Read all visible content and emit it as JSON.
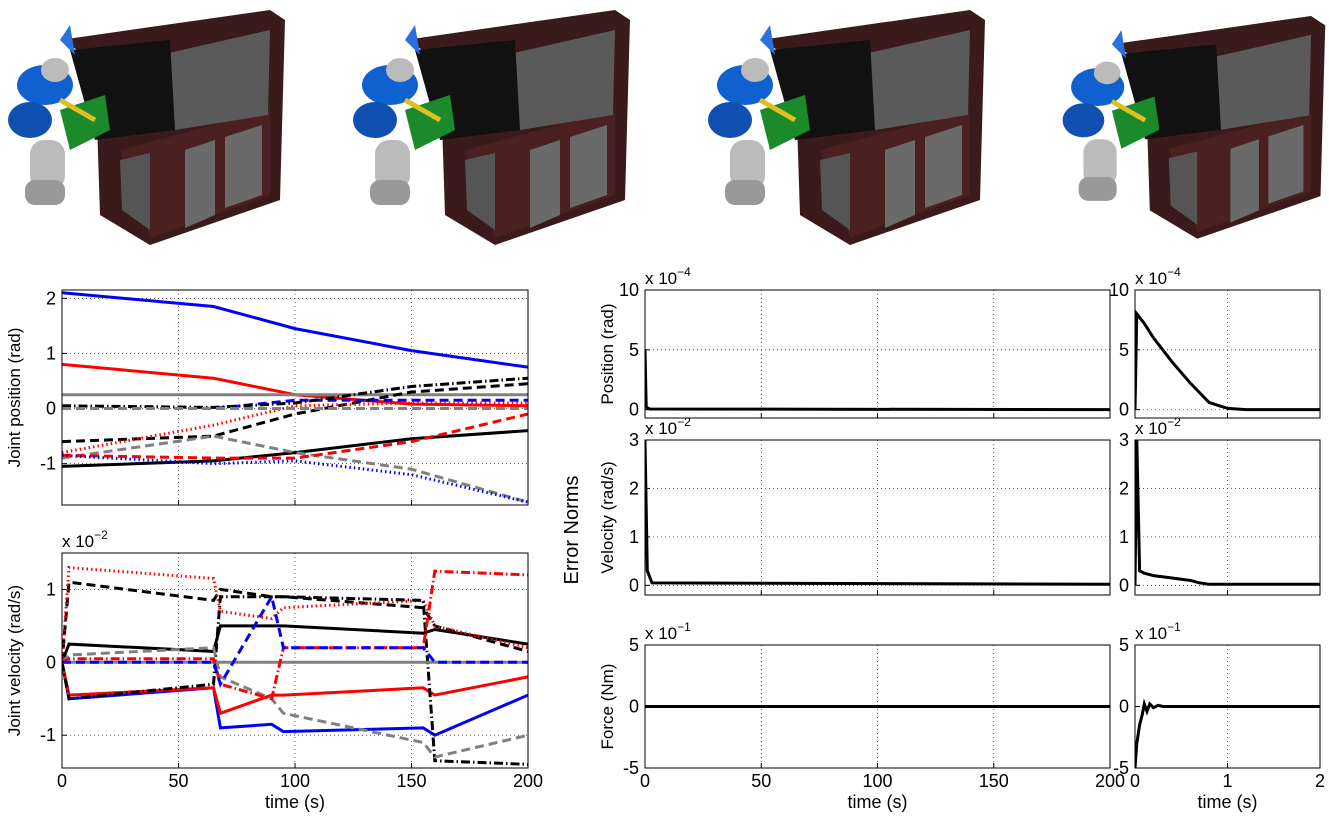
{
  "group_label": "Error Norms",
  "chart_data": [
    {
      "type": "line",
      "ylabel": "Joint position (rad)",
      "xlim": [
        0,
        200
      ],
      "xticks": [
        0,
        50,
        100,
        150,
        200
      ],
      "show_xtick_labels": false,
      "ylim": [
        -1.75,
        2.15
      ],
      "yticks": [
        -1,
        0,
        1,
        2
      ],
      "grid": true,
      "x": [
        0,
        65,
        100,
        150,
        200
      ],
      "series": [
        {
          "color": "#0000ff",
          "style": "solid",
          "values": [
            2.1,
            1.85,
            1.45,
            1.05,
            0.75
          ]
        },
        {
          "color": "#ff0000",
          "style": "solid",
          "values": [
            0.8,
            0.55,
            0.25,
            0.08,
            0.05
          ]
        },
        {
          "color": "#808080",
          "style": "solid",
          "values": [
            0.25,
            0.25,
            0.25,
            0.25,
            0.25
          ]
        },
        {
          "color": "#000000",
          "style": "solid",
          "values": [
            -1.05,
            -0.95,
            -0.8,
            -0.55,
            -0.4
          ]
        },
        {
          "color": "#000000",
          "style": "dashed",
          "values": [
            -0.6,
            -0.5,
            -0.1,
            0.3,
            0.45
          ]
        },
        {
          "color": "#808080",
          "style": "dashed",
          "values": [
            -0.9,
            -0.5,
            -0.8,
            -1.1,
            -1.7
          ]
        },
        {
          "color": "#0000ff",
          "style": "dashed",
          "values": [
            0,
            0,
            0.15,
            0.15,
            0.15
          ]
        },
        {
          "color": "#ff0000",
          "style": "dashed",
          "values": [
            -0.85,
            -0.9,
            -0.9,
            -0.6,
            -0.1
          ]
        },
        {
          "color": "#000000",
          "style": "dashdot",
          "values": [
            0.05,
            0.02,
            0.1,
            0.4,
            0.55
          ]
        },
        {
          "color": "#ff0000",
          "style": "dotted",
          "values": [
            -0.8,
            -0.3,
            0.05,
            0.1,
            0.1
          ]
        },
        {
          "color": "#0000ff",
          "style": "dotted",
          "values": [
            -0.85,
            -1.0,
            -0.95,
            -1.2,
            -1.7
          ]
        },
        {
          "color": "#808080",
          "style": "dashed",
          "values": [
            0,
            0,
            0,
            0,
            0
          ]
        }
      ]
    },
    {
      "type": "line",
      "ylabel": "Joint velocity (rad/s)",
      "xlabel": "time (s)",
      "y_scale": {
        "base": "x 10",
        "exponent": "−2"
      },
      "xlim": [
        0,
        200
      ],
      "xticks": [
        0,
        50,
        100,
        150,
        200
      ],
      "show_xtick_labels": true,
      "ylim": [
        -1.45,
        1.5
      ],
      "yticks": [
        -1,
        0,
        1
      ],
      "grid": true,
      "x": [
        0,
        3,
        65,
        68,
        90,
        95,
        155,
        160,
        200
      ],
      "series": [
        {
          "color": "#0000ff",
          "style": "solid",
          "values": [
            0,
            -0.5,
            -0.35,
            -0.9,
            -0.85,
            -0.95,
            -0.9,
            -1.0,
            -0.45
          ]
        },
        {
          "color": "#ff0000",
          "style": "solid",
          "values": [
            0,
            -0.45,
            -0.35,
            -0.7,
            -0.45,
            -0.45,
            -0.35,
            -0.45,
            -0.2
          ]
        },
        {
          "color": "#000000",
          "style": "solid",
          "values": [
            0,
            0.25,
            0.15,
            0.5,
            0.5,
            0.5,
            0.4,
            0.45,
            0.25
          ]
        },
        {
          "color": "#000000",
          "style": "dashed",
          "values": [
            0,
            1.1,
            0.85,
            1.0,
            0.9,
            0.9,
            0.75,
            0.5,
            0.15
          ]
        },
        {
          "color": "#ff0000",
          "style": "dotted",
          "values": [
            0,
            1.3,
            1.15,
            0.7,
            0.6,
            0.75,
            0.85,
            0.5,
            0.2
          ]
        },
        {
          "color": "#000000",
          "style": "dashdot",
          "values": [
            0,
            -0.5,
            -0.3,
            0.9,
            0.9,
            0.9,
            0.85,
            -1.35,
            -1.4
          ]
        },
        {
          "color": "#808080",
          "style": "solid",
          "values": [
            0,
            0,
            0,
            0,
            0,
            0,
            0,
            0,
            0
          ]
        },
        {
          "color": "#808080",
          "style": "dashed",
          "values": [
            0,
            0.1,
            0.2,
            -0.2,
            -0.5,
            -0.7,
            -1.1,
            -1.3,
            -1.0
          ]
        },
        {
          "color": "#ff0000",
          "style": "dashdot",
          "values": [
            0,
            0.05,
            0.05,
            -0.3,
            -0.5,
            0.2,
            0.2,
            1.25,
            1.2
          ]
        },
        {
          "color": "#0000ff",
          "style": "dashed",
          "values": [
            0,
            0,
            0,
            -0.3,
            0.9,
            0.2,
            0.2,
            0,
            0
          ]
        }
      ]
    },
    {
      "type": "line",
      "ylabel": "Position (rad)",
      "y_scale": {
        "base": "x 10",
        "exponent": "−4"
      },
      "xlim": [
        0,
        200
      ],
      "xticks": [
        0,
        50,
        100,
        150,
        200
      ],
      "show_xtick_labels": false,
      "ylim": [
        -0.7,
        10
      ],
      "yticks": [
        0,
        5,
        10
      ],
      "grid": true,
      "x": [
        0,
        0.5,
        2,
        200
      ],
      "series": [
        {
          "color": "#000000",
          "style": "solid",
          "values": [
            5,
            0.2,
            0.05,
            0
          ]
        }
      ]
    },
    {
      "type": "line",
      "y_scale": {
        "base": "x 10",
        "exponent": "−4"
      },
      "xlim": [
        0,
        2
      ],
      "xticks": [
        0,
        1,
        2
      ],
      "show_xtick_labels": false,
      "ylim": [
        -0.7,
        10
      ],
      "yticks": [
        0,
        5,
        10
      ],
      "grid": true,
      "x": [
        0,
        0.02,
        0.1,
        0.2,
        0.4,
        0.6,
        0.8,
        1,
        1.2,
        2
      ],
      "series": [
        {
          "color": "#000000",
          "style": "solid",
          "values": [
            0,
            8,
            7.2,
            6,
            4,
            2.2,
            0.6,
            0.1,
            0,
            0
          ]
        }
      ]
    },
    {
      "type": "line",
      "ylabel": "Velocity (rad/s)",
      "y_scale": {
        "base": "x 10",
        "exponent": "−2"
      },
      "xlim": [
        0,
        200
      ],
      "xticks": [
        0,
        50,
        100,
        150,
        200
      ],
      "show_xtick_labels": false,
      "ylim": [
        -0.2,
        3
      ],
      "yticks": [
        0,
        1,
        2,
        3
      ],
      "grid": true,
      "x": [
        0,
        1,
        3,
        200
      ],
      "series": [
        {
          "color": "#000000",
          "style": "solid",
          "values": [
            3,
            0.3,
            0.05,
            0.02
          ]
        }
      ]
    },
    {
      "type": "line",
      "y_scale": {
        "base": "x 10",
        "exponent": "−2"
      },
      "xlim": [
        0,
        2
      ],
      "xticks": [
        0,
        1,
        2
      ],
      "show_xtick_labels": false,
      "ylim": [
        -0.2,
        3
      ],
      "yticks": [
        0,
        1,
        2,
        3
      ],
      "grid": true,
      "x": [
        0,
        0.02,
        0.05,
        0.1,
        0.2,
        0.4,
        0.6,
        0.7,
        0.8,
        1,
        2
      ],
      "series": [
        {
          "color": "#000000",
          "style": "solid",
          "values": [
            0,
            3,
            0.3,
            0.25,
            0.2,
            0.15,
            0.1,
            0.05,
            0.02,
            0.02,
            0.02
          ]
        }
      ]
    },
    {
      "type": "line",
      "ylabel": "Force (Nm)",
      "xlabel": "time (s)",
      "y_scale": {
        "base": "x 10",
        "exponent": "−1"
      },
      "xlim": [
        0,
        200
      ],
      "xticks": [
        0,
        50,
        100,
        150,
        200
      ],
      "show_xtick_labels": true,
      "ylim": [
        -5,
        5
      ],
      "yticks": [
        -5,
        0,
        5
      ],
      "grid": true,
      "x": [
        0,
        200
      ],
      "series": [
        {
          "color": "#000000",
          "style": "solid",
          "values": [
            0,
            0
          ]
        }
      ]
    },
    {
      "type": "line",
      "xlabel": "time (s)",
      "y_scale": {
        "base": "x 10",
        "exponent": "−1"
      },
      "xlim": [
        0,
        2
      ],
      "xticks": [
        0,
        1,
        2
      ],
      "show_xtick_labels": true,
      "ylim": [
        -5,
        5
      ],
      "yticks": [
        -5,
        0,
        5
      ],
      "grid": true,
      "x": [
        0,
        0.02,
        0.05,
        0.08,
        0.1,
        0.13,
        0.16,
        0.2,
        0.25,
        0.3,
        0.4,
        2
      ],
      "series": [
        {
          "color": "#000000",
          "style": "solid",
          "values": [
            -5,
            -3,
            -1.5,
            -0.6,
            0.2,
            -0.4,
            0.2,
            -0.1,
            0.1,
            0,
            0,
            0
          ]
        }
      ]
    }
  ]
}
